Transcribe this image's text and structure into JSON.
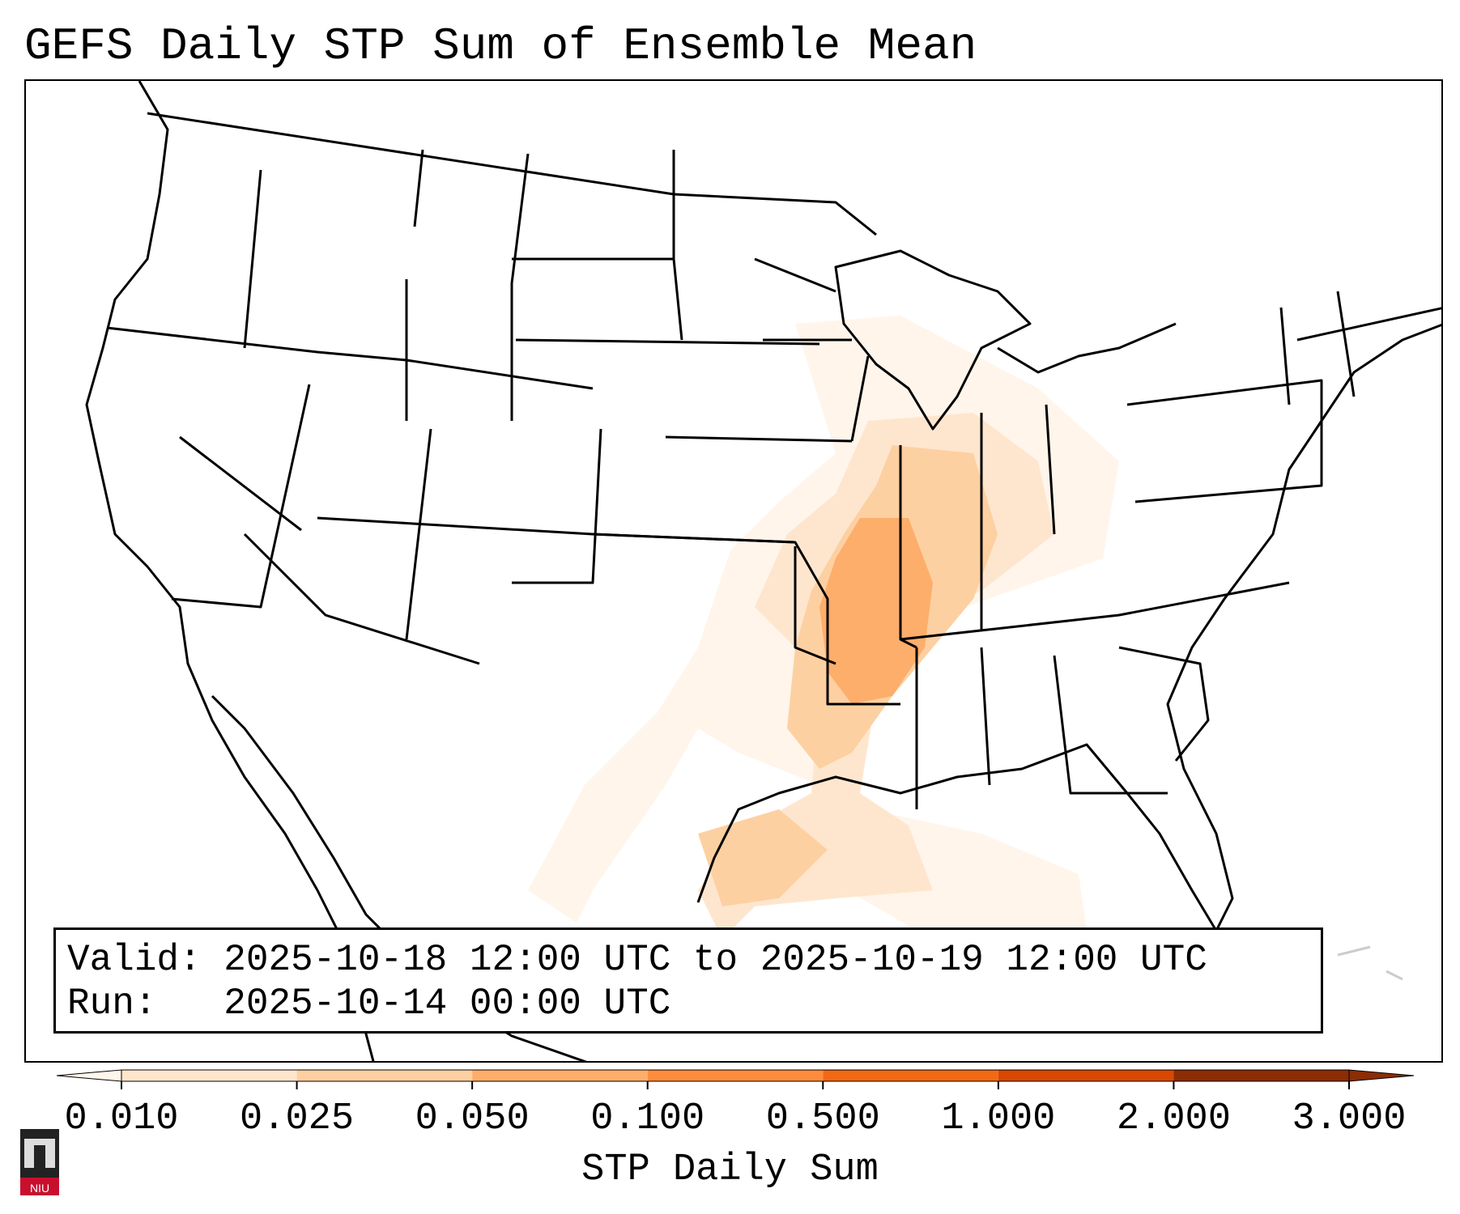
{
  "title": "GEFS Daily STP Sum of Ensemble Mean",
  "valid_line": "Valid: 2025-10-18 12:00 UTC to 2025-10-19 12:00 UTC",
  "run_line": "Run:   2025-10-14 00:00 UTC",
  "colorbar": {
    "label": "STP Daily Sum",
    "ticks": [
      "0.010",
      "0.025",
      "0.050",
      "0.100",
      "0.500",
      "1.000",
      "2.000",
      "3.000"
    ],
    "colors": [
      "#fff5eb",
      "#fee6ce",
      "#fdd0a2",
      "#fdae6b",
      "#fd8d3c",
      "#f16913",
      "#d94801",
      "#8c2d04"
    ],
    "extend": "both"
  },
  "logo": {
    "text": "NIU",
    "icon": "niu-building-logo",
    "accent": "#c8102e"
  },
  "colors": {
    "coast": "#000000",
    "background": "#ffffff"
  }
}
